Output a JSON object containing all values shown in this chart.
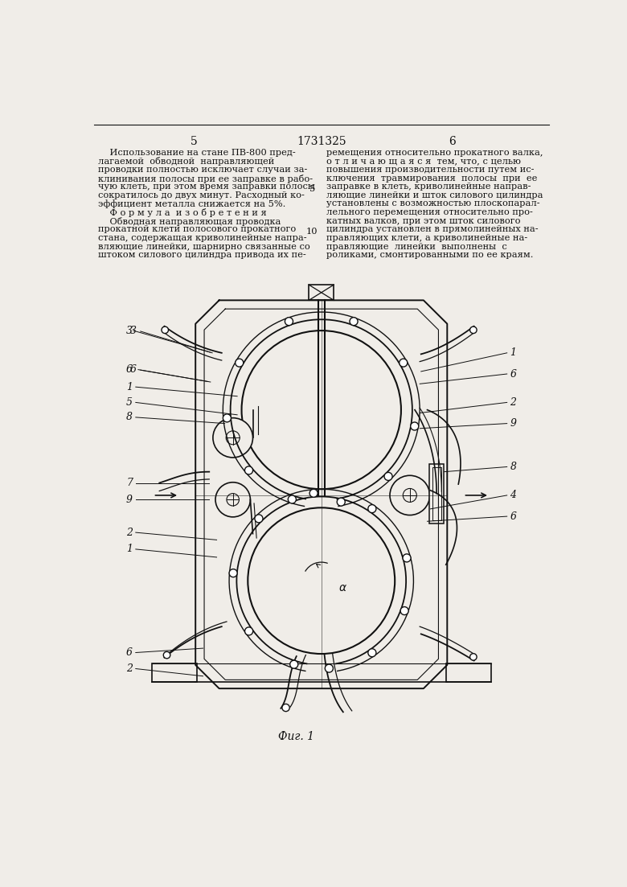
{
  "page_num_left": "5",
  "page_num_center": "1731325",
  "page_num_right": "6",
  "left_text": [
    "    Использование на стане ПВ-800 пред-",
    "лагаемой  обводной  направляющей",
    "проводки полностью исключает случаи за-",
    "клинивания полосы при ее заправке в рабо-",
    "чую клеть, при этом время заправки полосы",
    "сократилось до двух минут. Расходный ко-",
    "эффициент металла снижается на 5%.",
    "    Ф о р м у л а  и з о б р е т е н и я",
    "    Обводная направляющая проводка",
    "прокатной клети полосового прокатного",
    "стана, содержащая криволинейные напра-",
    "вляющие линейки, шарнирно связанные со",
    "штоком силового цилиндра привода их пе-"
  ],
  "right_text": [
    "ремещения относительно прокатного валка,",
    "о т л и ч а ю щ а я с я  тем, что, с целью",
    "повышения производительности путем ис-",
    "ключения  травмирования  полосы  при  ее",
    "заправке в клеть, криволинейные направ-",
    "ляющие линейки и шток силового цилиндра",
    "установлены с возможностью плоскопарал-",
    "лельного перемещения относительно про-",
    "катных валков, при этом шток силового",
    "цилиндра установлен в прямолинейных на-",
    "правляющих клети, а криволинейные на-",
    "правляющие  линейки  выполнены  с",
    "роликами, смонтированными по ее краям."
  ],
  "fig_caption": "Фиг. 1",
  "background_color": "#f0ede8",
  "text_color": "#111111",
  "line_color": "#111111"
}
